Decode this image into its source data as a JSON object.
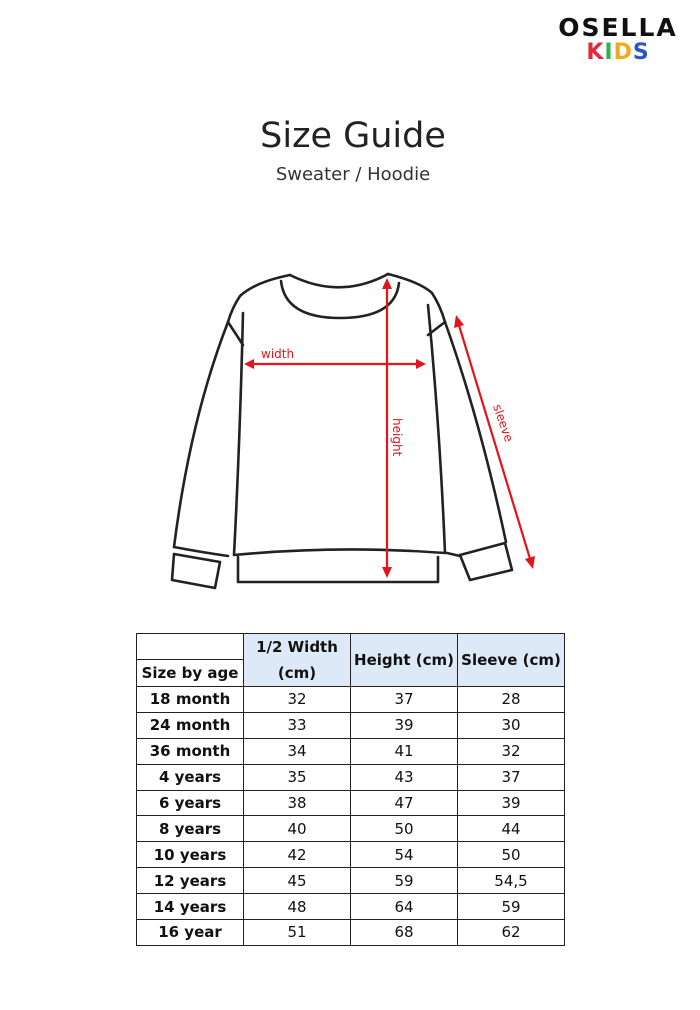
{
  "logo": {
    "top": "OSELLA",
    "kids_letters": [
      {
        "ch": "K",
        "color": "#e6283c"
      },
      {
        "ch": "I",
        "color": "#2fb34a"
      },
      {
        "ch": "D",
        "color": "#f6a81c"
      },
      {
        "ch": "S",
        "color": "#2b56c4"
      }
    ]
  },
  "title": "Size Guide",
  "subtitle": "Sweater / Hoodie",
  "diagram": {
    "labels": {
      "width": "width",
      "height": "height",
      "sleeve": "sleeve"
    },
    "arrow_color": "#e3141b"
  },
  "table": {
    "headers": {
      "age": "Size by age",
      "width": "1/2 Width (cm)",
      "height": "Height (cm)",
      "sleeve": "Sleeve (cm)"
    },
    "header_bg": "#dde9f6",
    "rows": [
      {
        "age": "18 month",
        "width": "32",
        "height": "37",
        "sleeve": "28"
      },
      {
        "age": "24 month",
        "width": "33",
        "height": "39",
        "sleeve": "30"
      },
      {
        "age": "36 month",
        "width": "34",
        "height": "41",
        "sleeve": "32"
      },
      {
        "age": "4 years",
        "width": "35",
        "height": "43",
        "sleeve": "37"
      },
      {
        "age": "6 years",
        "width": "38",
        "height": "47",
        "sleeve": "39"
      },
      {
        "age": "8 years",
        "width": "40",
        "height": "50",
        "sleeve": "44"
      },
      {
        "age": "10 years",
        "width": "42",
        "height": "54",
        "sleeve": "50"
      },
      {
        "age": "12 years",
        "width": "45",
        "height": "59",
        "sleeve": "54,5"
      },
      {
        "age": "14 years",
        "width": "48",
        "height": "64",
        "sleeve": "59"
      },
      {
        "age": "16 year",
        "width": "51",
        "height": "68",
        "sleeve": "62"
      }
    ]
  }
}
